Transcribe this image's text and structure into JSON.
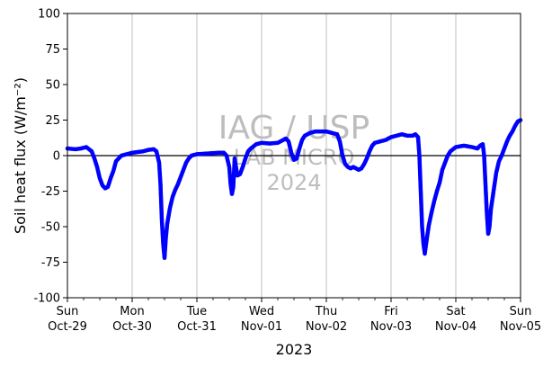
{
  "chart_data": {
    "type": "scatter",
    "title": "",
    "xlabel": "2023",
    "ylabel": "Soil heat flux (W/m⁻²)",
    "ylim": [
      -100,
      100
    ],
    "yticks": [
      -100,
      -75,
      -50,
      -25,
      0,
      25,
      50,
      75,
      100
    ],
    "xlim": [
      "2023-10-29T00:00",
      "2023-11-05T00:00"
    ],
    "xticks": [
      {
        "day": "Sun",
        "date": "Oct-29"
      },
      {
        "day": "Mon",
        "date": "Oct-30"
      },
      {
        "day": "Tue",
        "date": "Oct-31"
      },
      {
        "day": "Wed",
        "date": "Nov-01"
      },
      {
        "day": "Thu",
        "date": "Nov-02"
      },
      {
        "day": "Fri",
        "date": "Nov-03"
      },
      {
        "day": "Sat",
        "date": "Nov-04"
      },
      {
        "day": "Sun",
        "date": "Nov-05"
      }
    ],
    "grid": "x-major",
    "zero_line": true,
    "marker_color": "#0000ff",
    "watermark": [
      "IAG / USP",
      "LAB MICRO",
      "2024"
    ],
    "series": [
      {
        "color": "#0000ff",
        "points": [
          [
            "2023-10-29T00:00",
            5
          ],
          [
            "2023-10-29T03:00",
            4.5
          ],
          [
            "2023-10-29T05:00",
            5
          ],
          [
            "2023-10-29T07:00",
            6
          ],
          [
            "2023-10-29T09:00",
            3
          ],
          [
            "2023-10-29T10:00",
            -2
          ],
          [
            "2023-10-29T11:00",
            -8
          ],
          [
            "2023-10-29T12:00",
            -16
          ],
          [
            "2023-10-29T13:00",
            -21
          ],
          [
            "2023-10-29T14:00",
            -23
          ],
          [
            "2023-10-29T15:00",
            -22
          ],
          [
            "2023-10-29T16:00",
            -16
          ],
          [
            "2023-10-29T17:00",
            -11
          ],
          [
            "2023-10-29T18:00",
            -4
          ],
          [
            "2023-10-29T19:00",
            -2
          ],
          [
            "2023-10-29T20:00",
            0
          ],
          [
            "2023-10-30T00:00",
            2
          ],
          [
            "2023-10-30T04:00",
            3
          ],
          [
            "2023-10-30T06:00",
            4
          ],
          [
            "2023-10-30T08:00",
            4.5
          ],
          [
            "2023-10-30T09:00",
            3
          ],
          [
            "2023-10-30T10:00",
            -5
          ],
          [
            "2023-10-30T10:30",
            -20
          ],
          [
            "2023-10-30T11:00",
            -45
          ],
          [
            "2023-10-30T11:30",
            -62
          ],
          [
            "2023-10-30T12:00",
            -72
          ],
          [
            "2023-10-30T12:30",
            -58
          ],
          [
            "2023-10-30T13:00",
            -48
          ],
          [
            "2023-10-30T14:00",
            -37
          ],
          [
            "2023-10-30T15:00",
            -29
          ],
          [
            "2023-10-30T16:00",
            -24
          ],
          [
            "2023-10-30T17:00",
            -20
          ],
          [
            "2023-10-30T18:00",
            -15
          ],
          [
            "2023-10-30T19:00",
            -10
          ],
          [
            "2023-10-30T20:00",
            -5
          ],
          [
            "2023-10-30T21:00",
            -2
          ],
          [
            "2023-10-30T22:00",
            0
          ],
          [
            "2023-10-31T00:00",
            1
          ],
          [
            "2023-10-31T04:00",
            1.5
          ],
          [
            "2023-10-31T08:00",
            2
          ],
          [
            "2023-10-31T10:00",
            2
          ],
          [
            "2023-10-31T11:00",
            0
          ],
          [
            "2023-10-31T12:00",
            -8
          ],
          [
            "2023-10-31T12:30",
            -20
          ],
          [
            "2023-10-31T13:00",
            -27
          ],
          [
            "2023-10-31T13:30",
            -22
          ],
          [
            "2023-10-31T14:00",
            -2
          ],
          [
            "2023-10-31T14:30",
            -8
          ],
          [
            "2023-10-31T15:00",
            -14
          ],
          [
            "2023-10-31T16:00",
            -13
          ],
          [
            "2023-10-31T17:00",
            -8
          ],
          [
            "2023-10-31T18:00",
            -2
          ],
          [
            "2023-10-31T19:00",
            3
          ],
          [
            "2023-10-31T20:00",
            5
          ],
          [
            "2023-10-31T22:00",
            8
          ],
          [
            "2023-11-01T00:00",
            9
          ],
          [
            "2023-11-01T03:00",
            8.5
          ],
          [
            "2023-11-01T06:00",
            9
          ],
          [
            "2023-11-01T08:00",
            11
          ],
          [
            "2023-11-01T09:00",
            12
          ],
          [
            "2023-11-01T10:00",
            10
          ],
          [
            "2023-11-01T11:00",
            2
          ],
          [
            "2023-11-01T12:00",
            -3
          ],
          [
            "2023-11-01T13:00",
            -2
          ],
          [
            "2023-11-01T14:00",
            5
          ],
          [
            "2023-11-01T15:00",
            11
          ],
          [
            "2023-11-01T16:00",
            14
          ],
          [
            "2023-11-01T18:00",
            16
          ],
          [
            "2023-11-01T20:00",
            17
          ],
          [
            "2023-11-01T22:00",
            17
          ],
          [
            "2023-11-02T00:00",
            17
          ],
          [
            "2023-11-02T02:00",
            16
          ],
          [
            "2023-11-02T04:00",
            15
          ],
          [
            "2023-11-02T05:00",
            10
          ],
          [
            "2023-11-02T06:00",
            0
          ],
          [
            "2023-11-02T07:00",
            -6
          ],
          [
            "2023-11-02T08:00",
            -8
          ],
          [
            "2023-11-02T09:00",
            -9
          ],
          [
            "2023-11-02T10:00",
            -8
          ],
          [
            "2023-11-02T11:00",
            -9
          ],
          [
            "2023-11-02T12:00",
            -10
          ],
          [
            "2023-11-02T13:00",
            -9
          ],
          [
            "2023-11-02T14:00",
            -6
          ],
          [
            "2023-11-02T15:00",
            -2
          ],
          [
            "2023-11-02T16:00",
            3
          ],
          [
            "2023-11-02T17:00",
            7
          ],
          [
            "2023-11-02T18:00",
            9
          ],
          [
            "2023-11-02T20:00",
            10
          ],
          [
            "2023-11-02T22:00",
            11
          ],
          [
            "2023-11-03T00:00",
            13
          ],
          [
            "2023-11-03T02:00",
            14
          ],
          [
            "2023-11-03T04:00",
            15
          ],
          [
            "2023-11-03T06:00",
            14
          ],
          [
            "2023-11-03T08:00",
            14
          ],
          [
            "2023-11-03T09:00",
            15
          ],
          [
            "2023-11-03T10:00",
            13
          ],
          [
            "2023-11-03T10:30",
            0
          ],
          [
            "2023-11-03T11:00",
            -25
          ],
          [
            "2023-11-03T11:30",
            -50
          ],
          [
            "2023-11-03T12:00",
            -62
          ],
          [
            "2023-11-03T12:30",
            -69
          ],
          [
            "2023-11-03T13:00",
            -62
          ],
          [
            "2023-11-03T14:00",
            -49
          ],
          [
            "2023-11-03T15:00",
            -40
          ],
          [
            "2023-11-03T16:00",
            -32
          ],
          [
            "2023-11-03T17:00",
            -25
          ],
          [
            "2023-11-03T18:00",
            -19
          ],
          [
            "2023-11-03T19:00",
            -10
          ],
          [
            "2023-11-03T20:00",
            -5
          ],
          [
            "2023-11-03T21:00",
            0
          ],
          [
            "2023-11-03T22:00",
            3
          ],
          [
            "2023-11-04T00:00",
            6
          ],
          [
            "2023-11-04T03:00",
            7
          ],
          [
            "2023-11-04T06:00",
            6
          ],
          [
            "2023-11-04T08:00",
            5
          ],
          [
            "2023-11-04T09:00",
            7
          ],
          [
            "2023-11-04T10:00",
            8
          ],
          [
            "2023-11-04T10:30",
            0
          ],
          [
            "2023-11-04T11:00",
            -20
          ],
          [
            "2023-11-04T11:30",
            -40
          ],
          [
            "2023-11-04T12:00",
            -55
          ],
          [
            "2023-11-04T12:30",
            -50
          ],
          [
            "2023-11-04T13:00",
            -38
          ],
          [
            "2023-11-04T14:00",
            -25
          ],
          [
            "2023-11-04T15:00",
            -12
          ],
          [
            "2023-11-04T16:00",
            -4
          ],
          [
            "2023-11-04T17:00",
            0
          ],
          [
            "2023-11-04T18:00",
            5
          ],
          [
            "2023-11-04T19:00",
            10
          ],
          [
            "2023-11-04T20:00",
            14
          ],
          [
            "2023-11-04T21:00",
            17
          ],
          [
            "2023-11-04T22:00",
            21
          ],
          [
            "2023-11-04T23:00",
            24
          ],
          [
            "2023-11-05T00:00",
            25
          ]
        ]
      }
    ]
  }
}
